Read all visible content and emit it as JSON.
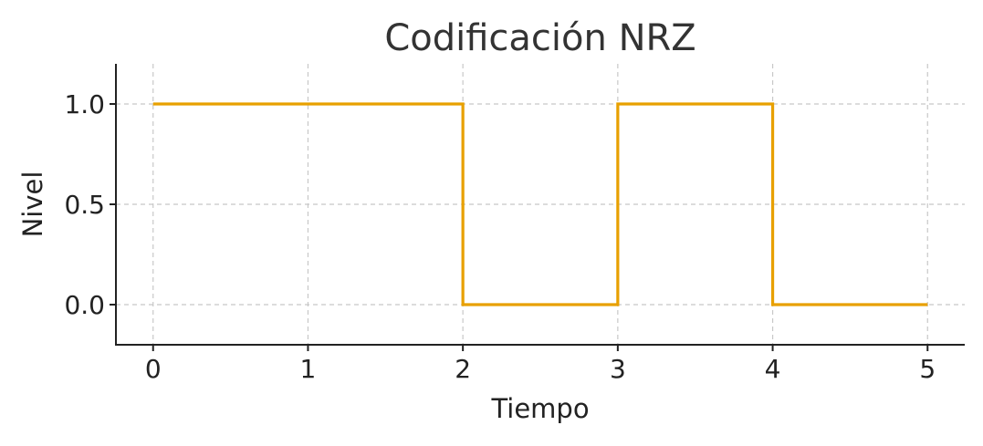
{
  "chart_data": {
    "type": "line",
    "step": "post",
    "title": "Codificación NRZ",
    "xlabel": "Tiempo",
    "ylabel": "Nivel",
    "xlim": [
      -0.24,
      5.24
    ],
    "ylim": [
      -0.2,
      1.2
    ],
    "xticks": [
      0,
      1,
      2,
      3,
      4,
      5
    ],
    "xtick_labels": [
      "0",
      "1",
      "2",
      "3",
      "4",
      "5"
    ],
    "yticks": [
      0.0,
      0.5,
      1.0
    ],
    "ytick_labels": [
      "0.0",
      "0.5",
      "1.0"
    ],
    "grid": true,
    "series": [
      {
        "color": "#e8a000",
        "x": [
          0,
          1,
          2,
          3,
          4,
          5
        ],
        "y": [
          1,
          1,
          0,
          1,
          0,
          0
        ]
      }
    ]
  }
}
